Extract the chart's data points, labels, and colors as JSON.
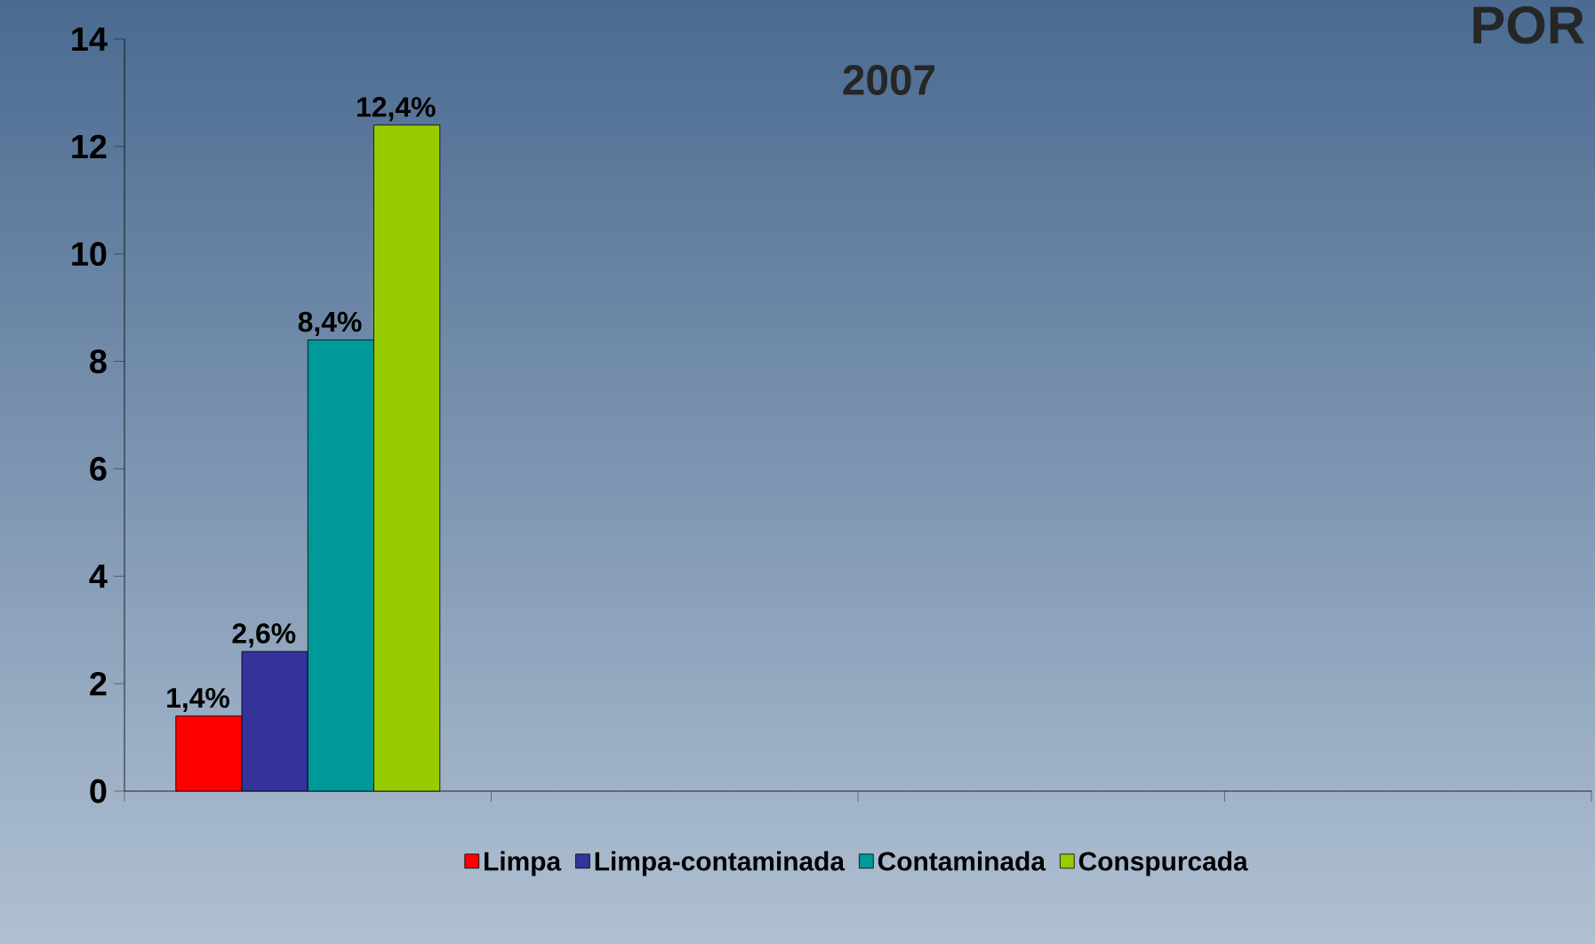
{
  "chart_data": {
    "type": "bar",
    "title": "2007",
    "annotations": [
      "POR"
    ],
    "categories": [
      null,
      null,
      null,
      null
    ],
    "series": [
      {
        "name": "Limpa",
        "color": "#ff0000",
        "values": [
          1.4,
          null,
          null,
          null
        ],
        "value_labels": [
          "1,4%",
          null,
          null,
          null
        ]
      },
      {
        "name": "Limpa-contaminada",
        "color": "#333399",
        "values": [
          2.6,
          null,
          null,
          null
        ],
        "value_labels": [
          "2,6%",
          null,
          null,
          null
        ]
      },
      {
        "name": "Contaminada",
        "color": "#009999",
        "values": [
          8.4,
          null,
          null,
          null
        ],
        "value_labels": [
          "8,4%",
          null,
          null,
          null
        ]
      },
      {
        "name": "Conspurcada",
        "color": "#99cc00",
        "values": [
          12.4,
          null,
          null,
          null
        ],
        "value_labels": [
          "12,4%",
          null,
          null,
          null
        ]
      }
    ],
    "ylim": [
      0,
      14
    ],
    "yticks": [
      0,
      2,
      4,
      6,
      8,
      10,
      12,
      14
    ],
    "grid": false,
    "legend": "bottom"
  }
}
